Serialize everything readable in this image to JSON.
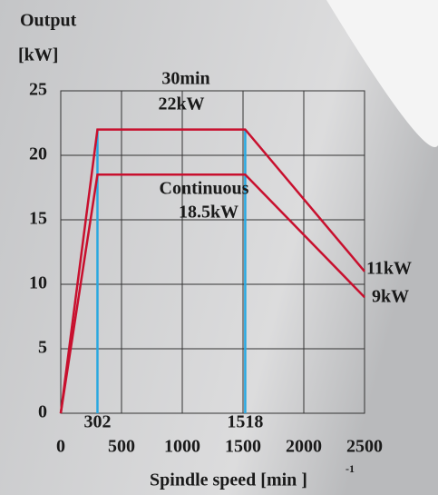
{
  "chart_data": {
    "type": "line",
    "ylabel": "Output",
    "yunit": "[kW]",
    "xlabel": "Spindle speed [min ]",
    "xlabel_sup": "-1",
    "xlim": [
      0,
      2500
    ],
    "xticks": [
      0,
      500,
      1000,
      1500,
      2000,
      2500
    ],
    "ylim": [
      0,
      25
    ],
    "yticks": [
      0,
      5,
      10,
      15,
      20,
      25
    ],
    "grid": true,
    "series": [
      {
        "name": "30min",
        "color": "#c8102e",
        "x": [
          0,
          302,
          1518,
          2500
        ],
        "values": [
          0,
          22,
          22,
          11
        ]
      },
      {
        "name": "Continuous",
        "color": "#c8102e",
        "x": [
          0,
          302,
          1518,
          2500
        ],
        "values": [
          0,
          18.5,
          18.5,
          9
        ]
      }
    ],
    "annotations": [
      {
        "text": "22kW"
      },
      {
        "text": "18.5kW"
      },
      {
        "text": "11kW"
      },
      {
        "text": "9kW"
      }
    ],
    "markers": {
      "color": "#29a8e0",
      "x": [
        302,
        1518
      ],
      "labels": [
        "302",
        "1518"
      ]
    }
  }
}
